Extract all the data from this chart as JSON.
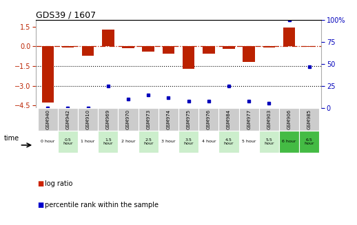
{
  "title": "GDS39 / 1607",
  "samples": [
    "GSM940",
    "GSM942",
    "GSM910",
    "GSM969",
    "GSM970",
    "GSM973",
    "GSM974",
    "GSM975",
    "GSM976",
    "GSM984",
    "GSM977",
    "GSM903",
    "GSM906",
    "GSM985"
  ],
  "time_labels": [
    "0 hour",
    "0.5\nhour",
    "1 hour",
    "1.5\nhour",
    "2 hour",
    "2.5\nhour",
    "3 hour",
    "3.5\nhour",
    "4 hour",
    "4.5\nhour",
    "5 hour",
    "5.5\nhour",
    "6 hour",
    "6.5\nhour"
  ],
  "log_ratio": [
    -4.3,
    -0.1,
    -0.7,
    1.3,
    -0.15,
    -0.4,
    -0.55,
    -1.7,
    -0.55,
    -0.2,
    -1.2,
    -0.1,
    1.45,
    -0.05
  ],
  "percentile": [
    0,
    0,
    0,
    25,
    10,
    15,
    12,
    8,
    8,
    25,
    8,
    5,
    100,
    47
  ],
  "ylim_left": [
    -4.7,
    2.0
  ],
  "ylim_right": [
    0,
    100
  ],
  "left_ticks": [
    1.5,
    0,
    -1.5,
    -3,
    -4.5
  ],
  "right_ticks": [
    100,
    75,
    50,
    25,
    0
  ],
  "hline_y": 0,
  "dotted_lines": [
    -1.5,
    -3
  ],
  "bar_color": "#bb2200",
  "dot_color": "#0000bb",
  "hline_color": "#bb2200",
  "time_colors": [
    "#ffffff",
    "#cceecc",
    "#ffffff",
    "#cceecc",
    "#ffffff",
    "#cceecc",
    "#ffffff",
    "#cceecc",
    "#ffffff",
    "#cceecc",
    "#ffffff",
    "#cceecc",
    "#44bb44",
    "#44bb44"
  ],
  "sample_bg": "#cccccc",
  "legend_bar_color": "#cc2200",
  "legend_dot_color": "#0000cc"
}
